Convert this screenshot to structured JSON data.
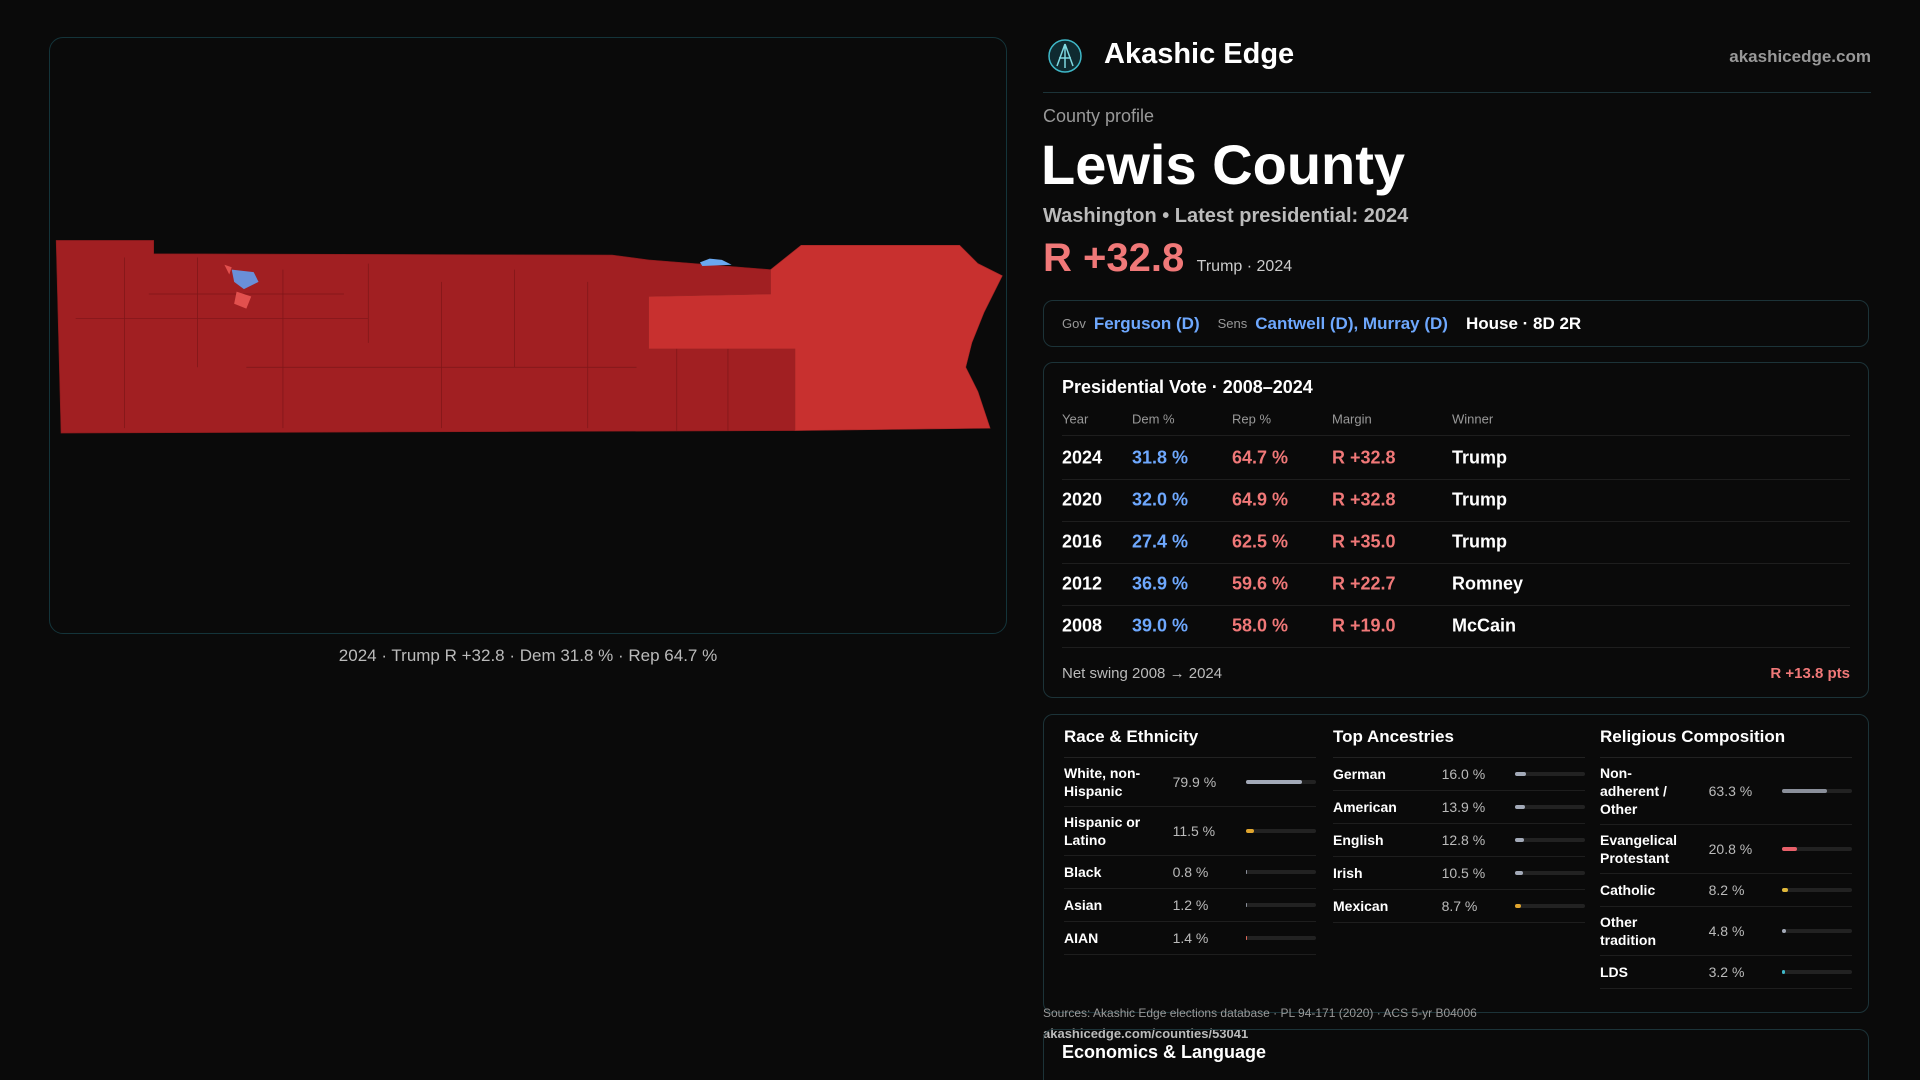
{
  "header": {
    "brand": "Akashic Edge",
    "site": "akashicedge.com"
  },
  "map": {
    "caption": "2024 · Trump R +32.8 · Dem 31.8 % · Rep 64.7 %"
  },
  "profile": {
    "kicker": "County profile",
    "name": "Lewis County",
    "subtitle": "Washington • Latest presidential: 2024",
    "margin": "R +32.8",
    "margin_note": "Trump · 2024"
  },
  "officials": {
    "gov_label": "Gov",
    "gov": "Ferguson (D)",
    "sens_label": "Sens",
    "sens": "Cantwell (D), Murray (D)",
    "house": "House · 8D 2R"
  },
  "presidential": {
    "title": "Presidential Vote · 2008–2024",
    "columns": [
      "Year",
      "Dem %",
      "Rep %",
      "Margin",
      "Winner"
    ],
    "rows": [
      [
        "2024",
        "31.8 %",
        "64.7 %",
        "R +32.8",
        "Trump"
      ],
      [
        "2020",
        "32.0 %",
        "64.9 %",
        "R +32.8",
        "Trump"
      ],
      [
        "2016",
        "27.4 %",
        "62.5 %",
        "R +35.0",
        "Trump"
      ],
      [
        "2012",
        "36.9 %",
        "59.6 %",
        "R +22.7",
        "Romney"
      ],
      [
        "2008",
        "39.0 %",
        "58.0 %",
        "R +19.0",
        "McCain"
      ]
    ],
    "swing_label": "Net swing 2008 → 2024",
    "swing": "R +13.8 pts"
  },
  "demographics": [
    {
      "title": "Race & Ethnicity",
      "items": [
        {
          "label": "White, non-Hispanic",
          "value": 79.9,
          "value_label": "79.9 %",
          "color": "#a3aab8"
        },
        {
          "label": "Hispanic or Latino",
          "value": 11.5,
          "value_label": "11.5 %",
          "color": "#e0a52e"
        },
        {
          "label": "Black",
          "value": 0.8,
          "value_label": "0.8 %",
          "color": "#8a8f9a"
        },
        {
          "label": "Asian",
          "value": 1.2,
          "value_label": "1.2 %",
          "color": "#8a8f9a"
        },
        {
          "label": "AIAN",
          "value": 1.4,
          "value_label": "1.4 %",
          "color": "#e06a5a"
        }
      ]
    },
    {
      "title": "Top Ancestries",
      "items": [
        {
          "label": "German",
          "value": 16.0,
          "value_label": "16.0 %",
          "color": "#a3aab8"
        },
        {
          "label": "American",
          "value": 13.9,
          "value_label": "13.9 %",
          "color": "#a3aab8"
        },
        {
          "label": "English",
          "value": 12.8,
          "value_label": "12.8 %",
          "color": "#a3aab8"
        },
        {
          "label": "Irish",
          "value": 10.5,
          "value_label": "10.5 %",
          "color": "#a3aab8"
        },
        {
          "label": "Mexican",
          "value": 8.7,
          "value_label": "8.7 %",
          "color": "#e0a52e"
        }
      ]
    },
    {
      "title": "Religious Composition",
      "items": [
        {
          "label": "Non-adherent / Other",
          "value": 63.3,
          "value_label": "63.3 %",
          "color": "#8a8f9a"
        },
        {
          "label": "Evangelical Protestant",
          "value": 20.8,
          "value_label": "20.8 %",
          "color": "#e8606a"
        },
        {
          "label": "Catholic",
          "value": 8.2,
          "value_label": "8.2 %",
          "color": "#e0b83a"
        },
        {
          "label": "Other tradition",
          "value": 4.8,
          "value_label": "4.8 %",
          "color": "#a3aab8"
        },
        {
          "label": "LDS",
          "value": 3.2,
          "value_label": "3.2 %",
          "color": "#3fb8c8"
        }
      ]
    }
  ],
  "sources": "Sources: Akashic Edge elections database · PL 94-171 (2020) · ACS 5-yr B04006",
  "url": "akashicedge.com/counties/53041",
  "economics": {
    "title": "Economics & Language"
  }
}
